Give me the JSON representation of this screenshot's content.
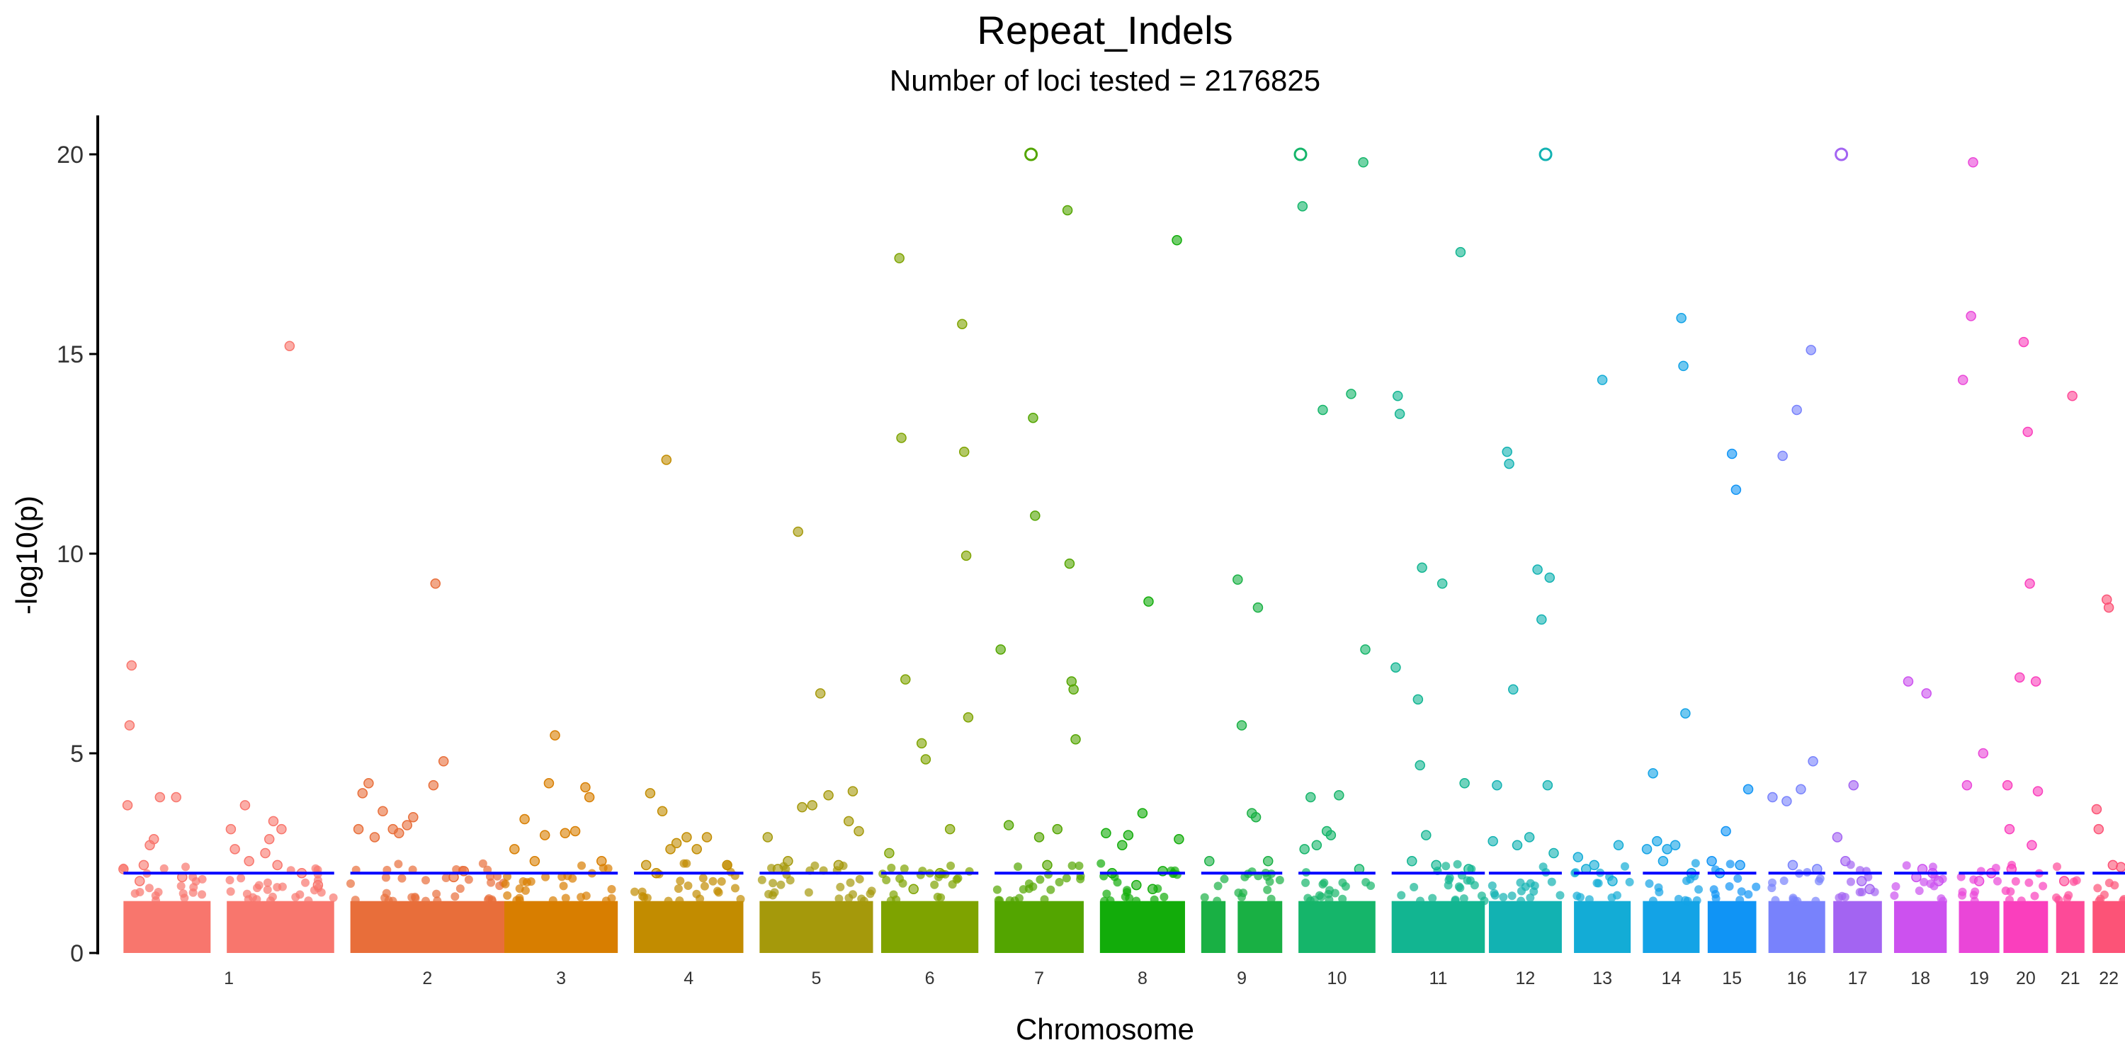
{
  "chart_data": {
    "type": "scatter",
    "title": "Repeat_Indels",
    "subtitle": "Number of loci tested = 2176825",
    "xlabel": "Chromosome",
    "ylabel": "-log10(p)",
    "ylim": [
      0,
      20
    ],
    "yticks": [
      0,
      5,
      10,
      15,
      20
    ],
    "grid": false,
    "legend": "none",
    "threshold": 2,
    "threshold_color": "#0000ff",
    "background_max": 1.3,
    "chromosomes": [
      {
        "name": "1",
        "color": "#f8766d",
        "range": [
          0.012,
          0.116
        ],
        "gaps": [
          [
            0.055,
            0.063
          ]
        ],
        "hits": [
          [
            0.012,
            2.1
          ],
          [
            0.014,
            3.7
          ],
          [
            0.015,
            5.7
          ],
          [
            0.016,
            7.2
          ],
          [
            0.02,
            1.8
          ],
          [
            0.022,
            2.2
          ],
          [
            0.025,
            2.7
          ],
          [
            0.027,
            2.85
          ],
          [
            0.03,
            3.9
          ],
          [
            0.038,
            3.9
          ],
          [
            0.041,
            1.9
          ],
          [
            0.065,
            3.1
          ],
          [
            0.067,
            2.6
          ],
          [
            0.072,
            3.7
          ],
          [
            0.074,
            2.3
          ],
          [
            0.082,
            2.5
          ],
          [
            0.084,
            2.85
          ],
          [
            0.086,
            3.3
          ],
          [
            0.088,
            2.2
          ],
          [
            0.09,
            3.1
          ],
          [
            0.094,
            15.2
          ],
          [
            0.1,
            2.0
          ],
          [
            0.108,
            1.7
          ]
        ]
      },
      {
        "name": "2",
        "color": "#e86e3a",
        "range": [
          0.124,
          0.2
        ],
        "gaps": [],
        "hits": [
          [
            0.128,
            3.1
          ],
          [
            0.13,
            4.0
          ],
          [
            0.133,
            4.25
          ],
          [
            0.136,
            2.9
          ],
          [
            0.14,
            3.55
          ],
          [
            0.145,
            3.1
          ],
          [
            0.148,
            3.0
          ],
          [
            0.152,
            3.2
          ],
          [
            0.155,
            3.4
          ],
          [
            0.165,
            4.2
          ],
          [
            0.166,
            9.25
          ],
          [
            0.17,
            4.8
          ],
          [
            0.175,
            1.9
          ],
          [
            0.18,
            2.05
          ]
        ]
      },
      {
        "name": "3",
        "color": "#d87e00",
        "range": [
          0.2,
          0.256
        ],
        "gaps": [],
        "hits": [
          [
            0.205,
            2.6
          ],
          [
            0.21,
            3.35
          ],
          [
            0.215,
            2.3
          ],
          [
            0.22,
            2.95
          ],
          [
            0.222,
            4.25
          ],
          [
            0.225,
            5.45
          ],
          [
            0.23,
            3.0
          ],
          [
            0.235,
            3.05
          ],
          [
            0.24,
            4.15
          ],
          [
            0.242,
            3.9
          ],
          [
            0.248,
            2.3
          ]
        ]
      },
      {
        "name": "4",
        "color": "#c28c00",
        "range": [
          0.264,
          0.318
        ],
        "gaps": [],
        "hits": [
          [
            0.27,
            2.2
          ],
          [
            0.272,
            4.0
          ],
          [
            0.275,
            2.0
          ],
          [
            0.278,
            3.55
          ],
          [
            0.28,
            12.35
          ],
          [
            0.282,
            2.6
          ],
          [
            0.285,
            2.75
          ],
          [
            0.29,
            2.9
          ],
          [
            0.295,
            2.6
          ],
          [
            0.3,
            2.9
          ],
          [
            0.31,
            2.2
          ]
        ]
      },
      {
        "name": "5",
        "color": "#a5990b",
        "range": [
          0.326,
          0.382
        ],
        "gaps": [],
        "hits": [
          [
            0.33,
            2.9
          ],
          [
            0.335,
            2.1
          ],
          [
            0.34,
            2.3
          ],
          [
            0.345,
            10.55
          ],
          [
            0.347,
            3.65
          ],
          [
            0.352,
            3.7
          ],
          [
            0.356,
            6.5
          ],
          [
            0.36,
            3.95
          ],
          [
            0.365,
            2.2
          ],
          [
            0.37,
            3.3
          ],
          [
            0.372,
            4.05
          ],
          [
            0.375,
            3.05
          ]
        ]
      },
      {
        "name": "6",
        "color": "#7ea300",
        "range": [
          0.386,
          0.434
        ],
        "gaps": [],
        "hits": [
          [
            0.39,
            2.5
          ],
          [
            0.395,
            17.4
          ],
          [
            0.396,
            12.9
          ],
          [
            0.398,
            6.85
          ],
          [
            0.402,
            1.6
          ],
          [
            0.406,
            5.25
          ],
          [
            0.408,
            4.85
          ],
          [
            0.415,
            2.0
          ],
          [
            0.42,
            3.1
          ],
          [
            0.426,
            15.75
          ],
          [
            0.427,
            12.55
          ],
          [
            0.428,
            9.95
          ],
          [
            0.429,
            5.9
          ]
        ]
      },
      {
        "name": "7",
        "color": "#53a500",
        "range": [
          0.442,
          0.486
        ],
        "gaps": [],
        "hits": [
          [
            0.445,
            7.6
          ],
          [
            0.449,
            3.2
          ],
          [
            0.46,
            20
          ],
          [
            0.461,
            13.4
          ],
          [
            0.462,
            10.95
          ],
          [
            0.464,
            2.9
          ],
          [
            0.468,
            2.2
          ],
          [
            0.473,
            3.1
          ],
          [
            0.478,
            18.6
          ],
          [
            0.479,
            9.75
          ],
          [
            0.48,
            6.8
          ],
          [
            0.481,
            6.6
          ],
          [
            0.482,
            5.35
          ]
        ]
      },
      {
        "name": "8",
        "color": "#12ac0a",
        "range": [
          0.494,
          0.536
        ],
        "gaps": [],
        "hits": [
          [
            0.497,
            3.0
          ],
          [
            0.5,
            2.0
          ],
          [
            0.505,
            2.7
          ],
          [
            0.508,
            2.95
          ],
          [
            0.512,
            1.7
          ],
          [
            0.515,
            3.5
          ],
          [
            0.518,
            8.8
          ],
          [
            0.52,
            1.6
          ],
          [
            0.525,
            2.05
          ],
          [
            0.532,
            17.85
          ],
          [
            0.533,
            2.85
          ]
        ]
      },
      {
        "name": "9",
        "color": "#19b044",
        "range": [
          0.544,
          0.584
        ],
        "gaps": [
          [
            0.556,
            0.562
          ]
        ],
        "hits": [
          [
            0.548,
            2.3
          ],
          [
            0.562,
            9.35
          ],
          [
            0.564,
            5.7
          ],
          [
            0.569,
            3.5
          ],
          [
            0.571,
            3.4
          ],
          [
            0.572,
            8.65
          ],
          [
            0.577,
            2.3
          ]
        ]
      },
      {
        "name": "10",
        "color": "#15b56a",
        "range": [
          0.592,
          0.63
        ],
        "gaps": [],
        "hits": [
          [
            0.593,
            20
          ],
          [
            0.594,
            18.7
          ],
          [
            0.595,
            2.6
          ],
          [
            0.598,
            3.9
          ],
          [
            0.601,
            2.7
          ],
          [
            0.604,
            13.6
          ],
          [
            0.606,
            3.05
          ],
          [
            0.608,
            2.95
          ],
          [
            0.612,
            3.95
          ],
          [
            0.618,
            14.0
          ],
          [
            0.622,
            2.1
          ],
          [
            0.624,
            19.8
          ],
          [
            0.625,
            7.6
          ]
        ]
      },
      {
        "name": "11",
        "color": "#12b591",
        "range": [
          0.638,
          0.684
        ],
        "gaps": [],
        "hits": [
          [
            0.64,
            7.15
          ],
          [
            0.641,
            13.95
          ],
          [
            0.642,
            13.5
          ],
          [
            0.648,
            2.3
          ],
          [
            0.651,
            6.35
          ],
          [
            0.652,
            4.7
          ],
          [
            0.653,
            9.65
          ],
          [
            0.655,
            2.95
          ],
          [
            0.66,
            2.2
          ],
          [
            0.663,
            9.25
          ],
          [
            0.672,
            17.55
          ],
          [
            0.674,
            4.25
          ],
          [
            0.676,
            2.1
          ]
        ]
      },
      {
        "name": "12",
        "color": "#12b2b2",
        "range": [
          0.686,
          0.722
        ],
        "gaps": [],
        "hits": [
          [
            0.688,
            2.8
          ],
          [
            0.69,
            4.2
          ],
          [
            0.695,
            12.55
          ],
          [
            0.696,
            12.25
          ],
          [
            0.698,
            6.6
          ],
          [
            0.7,
            2.7
          ],
          [
            0.706,
            2.9
          ],
          [
            0.71,
            9.6
          ],
          [
            0.712,
            8.35
          ],
          [
            0.714,
            20
          ],
          [
            0.715,
            4.2
          ],
          [
            0.716,
            9.4
          ],
          [
            0.718,
            2.5
          ]
        ]
      },
      {
        "name": "13",
        "color": "#13acd6",
        "range": [
          0.728,
          0.756
        ],
        "gaps": [],
        "hits": [
          [
            0.73,
            2.4
          ],
          [
            0.734,
            2.1
          ],
          [
            0.738,
            2.2
          ],
          [
            0.742,
            14.35
          ],
          [
            0.747,
            1.8
          ],
          [
            0.75,
            2.7
          ]
        ]
      },
      {
        "name": "14",
        "color": "#13a3e6",
        "range": [
          0.762,
          0.79
        ],
        "gaps": [],
        "hits": [
          [
            0.764,
            2.6
          ],
          [
            0.767,
            4.5
          ],
          [
            0.769,
            2.8
          ],
          [
            0.772,
            2.3
          ],
          [
            0.774,
            2.6
          ],
          [
            0.778,
            2.7
          ],
          [
            0.781,
            15.9
          ],
          [
            0.782,
            14.7
          ],
          [
            0.783,
            6.0
          ],
          [
            0.786,
            2.0
          ]
        ]
      },
      {
        "name": "15",
        "color": "#1094f5",
        "range": [
          0.794,
          0.818
        ],
        "gaps": [],
        "hits": [
          [
            0.796,
            2.3
          ],
          [
            0.8,
            2.0
          ],
          [
            0.803,
            3.05
          ],
          [
            0.806,
            12.5
          ],
          [
            0.808,
            11.6
          ],
          [
            0.81,
            2.2
          ],
          [
            0.814,
            4.1
          ]
        ]
      },
      {
        "name": "16",
        "color": "#7882fc",
        "range": [
          0.824,
          0.852
        ],
        "gaps": [],
        "hits": [
          [
            0.826,
            3.9
          ],
          [
            0.831,
            12.45
          ],
          [
            0.833,
            3.8
          ],
          [
            0.836,
            2.2
          ],
          [
            0.838,
            13.6
          ],
          [
            0.84,
            4.1
          ],
          [
            0.845,
            15.1
          ],
          [
            0.846,
            4.8
          ],
          [
            0.848,
            2.1
          ]
        ]
      },
      {
        "name": "17",
        "color": "#a364f2",
        "range": [
          0.856,
          0.88
        ],
        "gaps": [],
        "hits": [
          [
            0.858,
            2.9
          ],
          [
            0.86,
            20
          ],
          [
            0.862,
            2.3
          ],
          [
            0.866,
            4.2
          ],
          [
            0.87,
            1.8
          ],
          [
            0.874,
            1.6
          ]
        ]
      },
      {
        "name": "18",
        "color": "#cc51ef",
        "range": [
          0.886,
          0.912
        ],
        "gaps": [],
        "hits": [
          [
            0.893,
            6.8
          ],
          [
            0.897,
            1.9
          ],
          [
            0.9,
            2.1
          ],
          [
            0.902,
            6.5
          ],
          [
            0.905,
            2.0
          ],
          [
            0.908,
            1.8
          ]
        ]
      },
      {
        "name": "19",
        "color": "#ea46d8",
        "range": [
          0.918,
          0.938
        ],
        "gaps": [],
        "hits": [
          [
            0.92,
            14.35
          ],
          [
            0.922,
            4.2
          ],
          [
            0.924,
            15.95
          ],
          [
            0.925,
            19.8
          ],
          [
            0.928,
            1.8
          ],
          [
            0.93,
            5.0
          ],
          [
            0.934,
            2.0
          ]
        ]
      },
      {
        "name": "20",
        "color": "#fa3fbd",
        "range": [
          0.94,
          0.962
        ],
        "gaps": [],
        "hits": [
          [
            0.942,
            4.2
          ],
          [
            0.943,
            3.1
          ],
          [
            0.944,
            2.1
          ],
          [
            0.948,
            6.9
          ],
          [
            0.95,
            15.3
          ],
          [
            0.952,
            13.05
          ],
          [
            0.953,
            9.25
          ],
          [
            0.956,
            6.8
          ],
          [
            0.957,
            4.05
          ],
          [
            0.954,
            2.7
          ]
        ]
      },
      {
        "name": "21",
        "color": "#fd4a98",
        "range": [
          0.966,
          0.98
        ],
        "gaps": [],
        "hits": [
          [
            0.974,
            13.95
          ],
          [
            0.97,
            1.8
          ]
        ]
      },
      {
        "name": "22",
        "color": "#fc5377",
        "range": [
          0.984,
          1.0
        ],
        "gaps": [],
        "hits": [
          [
            0.986,
            3.6
          ],
          [
            0.987,
            3.1
          ],
          [
            0.991,
            8.85
          ],
          [
            0.992,
            8.65
          ],
          [
            0.994,
            2.2
          ],
          [
            0.998,
            2.15
          ]
        ]
      }
    ]
  }
}
